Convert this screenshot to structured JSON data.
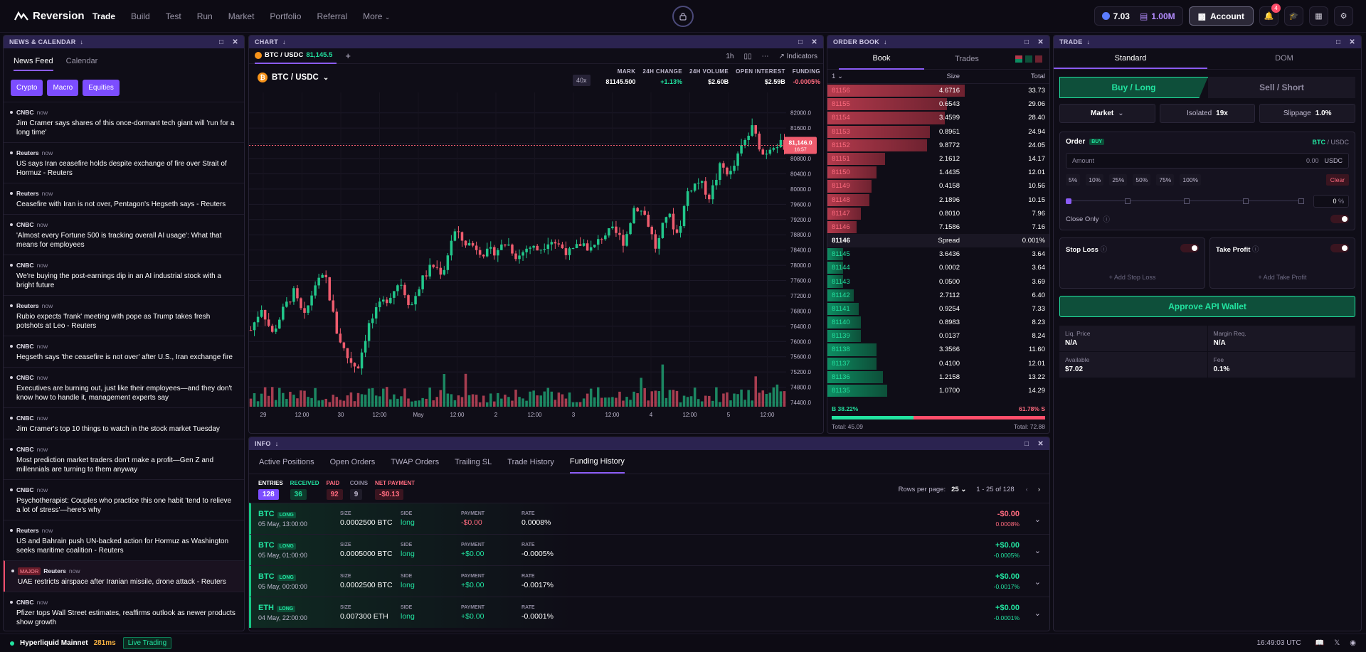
{
  "brand": {
    "name": "Reversion"
  },
  "nav": [
    "Trade",
    "Build",
    "Test",
    "Run",
    "Market",
    "Portfolio",
    "Referral",
    "More"
  ],
  "topright": {
    "points": "7.03",
    "balance": "1.00M",
    "account": "Account",
    "notif_count": "4"
  },
  "news": {
    "title": "NEWS & CALENDAR",
    "tabs": [
      "News Feed",
      "Calendar"
    ],
    "filters": [
      "Crypto",
      "Macro",
      "Equities"
    ],
    "items": [
      {
        "src": "CNBC",
        "when": "now",
        "text": "Jim Cramer says shares of this once-dormant tech giant will 'run for a long time'"
      },
      {
        "src": "Reuters",
        "when": "now",
        "text": "US says Iran ceasefire holds despite exchange of fire over Strait of Hormuz - Reuters"
      },
      {
        "src": "Reuters",
        "when": "now",
        "text": "Ceasefire with Iran is not over, Pentagon's Hegseth says - Reuters"
      },
      {
        "src": "CNBC",
        "when": "now",
        "text": "'Almost every Fortune 500 is tracking overall AI usage': What that means for employees"
      },
      {
        "src": "CNBC",
        "when": "now",
        "text": "We're buying the post-earnings dip in an AI industrial stock with a bright future"
      },
      {
        "src": "Reuters",
        "when": "now",
        "text": "Rubio expects 'frank' meeting with pope as Trump takes fresh potshots at Leo - Reuters"
      },
      {
        "src": "CNBC",
        "when": "now",
        "text": "Hegseth says 'the ceasefire is not over' after U.S., Iran exchange fire"
      },
      {
        "src": "CNBC",
        "when": "now",
        "text": "Executives are burning out, just like their employees—and they don't know how to handle it, management experts say"
      },
      {
        "src": "CNBC",
        "when": "now",
        "text": "Jim Cramer's top 10 things to watch in the stock market Tuesday"
      },
      {
        "src": "CNBC",
        "when": "now",
        "text": "Most prediction market traders don't make a profit—Gen Z and millennials are turning to them anyway"
      },
      {
        "src": "CNBC",
        "when": "now",
        "text": "Psychotherapist: Couples who practice this one habit 'tend to relieve a lot of stress'—here's why"
      },
      {
        "src": "Reuters",
        "when": "now",
        "text": "US and Bahrain push UN-backed action for Hormuz as Washington seeks maritime coalition - Reuters"
      },
      {
        "src": "Reuters",
        "when": "now",
        "text": "UAE restricts airspace after Iranian missile, drone attack - Reuters",
        "major": "MAJOR"
      },
      {
        "src": "CNBC",
        "when": "now",
        "text": "Pfizer tops Wall Street estimates, reaffirms outlook as newer products show growth"
      }
    ]
  },
  "chart": {
    "title": "CHART",
    "tab_pair": "BTC / USDC",
    "tab_price": "81,145.5",
    "pair": "BTC / USDC",
    "tools": {
      "interval": "1h",
      "indicators": "Indicators"
    },
    "leverage": "40x",
    "stats": [
      {
        "k": "MARK",
        "v": "81145.500",
        "c": "#ffffff"
      },
      {
        "k": "24H CHANGE",
        "v": "+1.13%",
        "c": "#22e3a0"
      },
      {
        "k": "24H VOLUME",
        "v": "$2.60B",
        "c": "#ffffff"
      },
      {
        "k": "OPEN INTEREST",
        "v": "$2.59B",
        "c": "#ffffff"
      },
      {
        "k": "FUNDING",
        "v": "-0.0005%",
        "c": "#ff6b7f"
      }
    ],
    "price_tag": "81,146.0",
    "price_tag_sub": "16:57",
    "y_ticks": [
      "82000.0",
      "81600.0",
      "81200.0",
      "80800.0",
      "80400.0",
      "80000.0",
      "79600.0",
      "79200.0",
      "78800.0",
      "78400.0",
      "78000.0",
      "77600.0",
      "77200.0",
      "76800.0",
      "76400.0",
      "76000.0",
      "75600.0",
      "75200.0",
      "74800.0",
      "74400.0"
    ],
    "x_ticks": [
      "29",
      "12:00",
      "30",
      "12:00",
      "May",
      "12:00",
      "2",
      "12:00",
      "3",
      "12:00",
      "4",
      "12:00",
      "5",
      "12:00"
    ]
  },
  "chart_data": {
    "type": "candlestick",
    "title": "BTC / USDC",
    "interval": "1h",
    "ylim": [
      74400,
      82200
    ],
    "last": 81146.0,
    "close_path": [
      76300,
      76900,
      76200,
      76800,
      77300,
      76600,
      77500,
      77700,
      76300,
      75600,
      75300,
      76400,
      76900,
      77200,
      77600,
      76900,
      77600,
      78000,
      77800,
      78900,
      78600,
      78500,
      78300,
      78400,
      78600,
      78200,
      78500,
      78400,
      78700,
      78500,
      78300,
      78600,
      78400,
      78800,
      78900,
      78600,
      79600,
      79300,
      78400,
      79400,
      78800,
      80000,
      80200,
      79800,
      80600,
      80400,
      81100,
      81600,
      80900,
      81200,
      81146
    ]
  },
  "orderbook": {
    "title": "ORDER BOOK",
    "tabs": [
      "Book",
      "Trades"
    ],
    "group": "1",
    "cols": [
      "Size",
      "Total"
    ],
    "asks": [
      [
        "81156",
        "4.6716",
        "33.73",
        0.62
      ],
      [
        "81155",
        "0.6543",
        "29.06",
        0.54
      ],
      [
        "81154",
        "3.4599",
        "28.40",
        0.53
      ],
      [
        "81153",
        "0.8961",
        "24.94",
        0.46
      ],
      [
        "81152",
        "9.8772",
        "24.05",
        0.45
      ],
      [
        "81151",
        "2.1612",
        "14.17",
        0.26
      ],
      [
        "81150",
        "1.4435",
        "12.01",
        0.22
      ],
      [
        "81149",
        "0.4158",
        "10.56",
        0.2
      ],
      [
        "81148",
        "2.1896",
        "10.15",
        0.19
      ],
      [
        "81147",
        "0.8010",
        "7.96",
        0.15
      ],
      [
        "81146",
        "7.1586",
        "7.16",
        0.13
      ]
    ],
    "spread": {
      "price": "81146",
      "label": "Spread",
      "pct": "0.001%"
    },
    "bids": [
      [
        "81145",
        "3.6436",
        "3.64",
        0.07
      ],
      [
        "81144",
        "0.0002",
        "3.64",
        0.07
      ],
      [
        "81143",
        "0.0500",
        "3.69",
        0.07
      ],
      [
        "81142",
        "2.7112",
        "6.40",
        0.12
      ],
      [
        "81141",
        "0.9254",
        "7.33",
        0.14
      ],
      [
        "81140",
        "0.8983",
        "8.23",
        0.15
      ],
      [
        "81139",
        "0.0137",
        "8.24",
        0.15
      ],
      [
        "81138",
        "3.3566",
        "11.60",
        0.22
      ],
      [
        "81137",
        "0.4100",
        "12.01",
        0.22
      ],
      [
        "81136",
        "1.2158",
        "13.22",
        0.25
      ],
      [
        "81135",
        "1.0700",
        "14.29",
        0.27
      ]
    ],
    "ratio_b": "B 38.22%",
    "ratio_s": "61.78% S",
    "ratio_b_frac": 0.3822,
    "total_b": "Total: 45.09",
    "total_s": "Total: 72.88"
  },
  "info": {
    "title": "INFO",
    "tabs": [
      "Active Positions",
      "Open Orders",
      "TWAP Orders",
      "Trailing SL",
      "Trade History",
      "Funding History"
    ],
    "summary": [
      {
        "k": "ENTRIES",
        "v": "128",
        "kc": "#ffffff",
        "bg": "#7c4dff",
        "vc": "#ffffff"
      },
      {
        "k": "RECEIVED",
        "v": "36",
        "kc": "#22e3a0",
        "bg": "#0e3a2c",
        "vc": "#22e3a0"
      },
      {
        "k": "PAID",
        "v": "92",
        "kc": "#ff6b7f",
        "bg": "#3a1520",
        "vc": "#ff6b7f"
      },
      {
        "k": "COINS",
        "v": "9",
        "kc": "#8f8aa0",
        "bg": "#1f1c29",
        "vc": "#bfb9cf"
      },
      {
        "k": "NET PAYMENT",
        "v": "-$0.13",
        "kc": "#ff6b7f",
        "bg": "#3a1520",
        "vc": "#ff6b7f"
      }
    ],
    "pager": {
      "rows_label": "Rows per page:",
      "rows": "25",
      "range": "1 - 25 of 128"
    },
    "rows": [
      {
        "sym": "BTC",
        "side_tag": "LONG",
        "date": "05 May, 13:00:00",
        "size": "0.0002500 BTC",
        "side": "long",
        "payment": "-$0.00",
        "rate": "0.0008%",
        "amt": "-$0.00",
        "pct": "0.0008%",
        "neg": true
      },
      {
        "sym": "BTC",
        "side_tag": "LONG",
        "date": "05 May, 01:00:00",
        "size": "0.0005000 BTC",
        "side": "long",
        "payment": "+$0.00",
        "rate": "-0.0005%",
        "amt": "+$0.00",
        "pct": "-0.0005%",
        "neg": false
      },
      {
        "sym": "BTC",
        "side_tag": "LONG",
        "date": "05 May, 00:00:00",
        "size": "0.0002500 BTC",
        "side": "long",
        "payment": "+$0.00",
        "rate": "-0.0017%",
        "amt": "+$0.00",
        "pct": "-0.0017%",
        "neg": false
      },
      {
        "sym": "ETH",
        "side_tag": "LONG",
        "date": "04 May, 22:00:00",
        "size": "0.007300 ETH",
        "side": "long",
        "payment": "+$0.00",
        "rate": "-0.0001%",
        "amt": "+$0.00",
        "pct": "-0.0001%",
        "neg": false
      }
    ],
    "labels": {
      "size": "SIZE",
      "side": "SIDE",
      "payment": "PAYMENT",
      "rate": "RATE"
    }
  },
  "trade": {
    "title": "TRADE",
    "tabs": [
      "Standard",
      "DOM"
    ],
    "buy": "Buy / Long",
    "sell": "Sell / Short",
    "order_type": "Market",
    "margin_label": "Isolated",
    "margin_val": "19x",
    "slip_label": "Slippage",
    "slip_val": "1.0%",
    "order_label": "Order",
    "order_tag": "BUY",
    "pair_base": "BTC",
    "pair_quote": "/ USDC",
    "amount_placeholder": "Amount",
    "amount_value": "0.00",
    "amount_unit": "USDC",
    "pcts": [
      "5%",
      "10%",
      "25%",
      "50%",
      "75%",
      "100%"
    ],
    "clear": "Clear",
    "slider_value": "0",
    "slider_unit": "%",
    "close_only": "Close Only",
    "stop_loss": "Stop Loss",
    "add_stop_loss": "+ Add Stop Loss",
    "take_profit": "Take Profit",
    "add_take_profit": "+ Add Take Profit",
    "approve": "Approve API Wallet",
    "meta": [
      {
        "k": "Liq. Price",
        "v": "N/A"
      },
      {
        "k": "Margin Req.",
        "v": "N/A"
      },
      {
        "k": "Available",
        "v": "$7.02"
      },
      {
        "k": "Fee",
        "v": "0.1%"
      }
    ]
  },
  "status": {
    "network": "Hyperliquid Mainnet",
    "latency": "281ms",
    "mode": "Live Trading",
    "time": "16:49:03 UTC"
  }
}
